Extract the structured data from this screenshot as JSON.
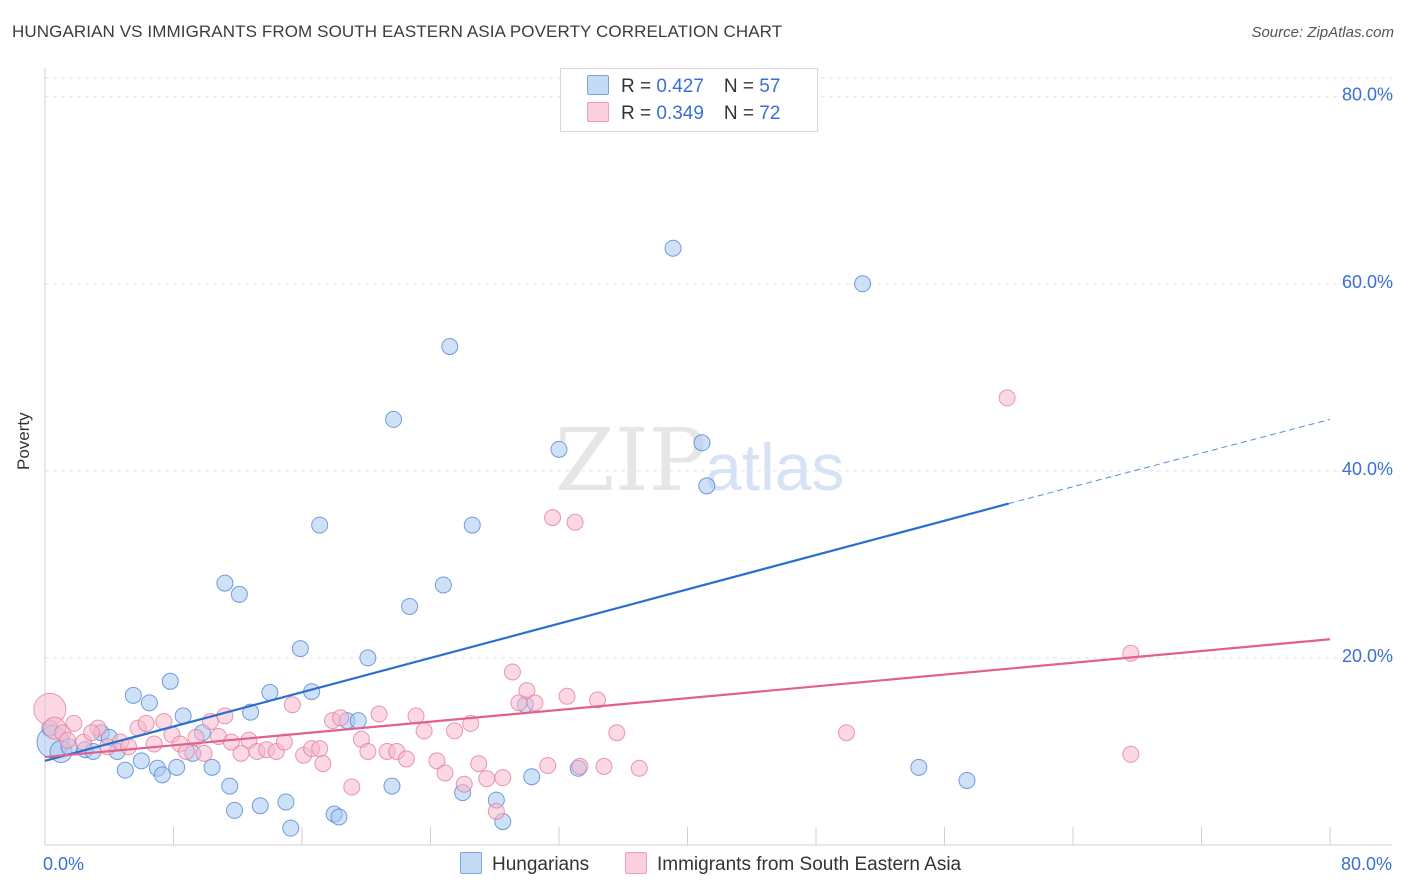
{
  "title": "HUNGARIAN VS IMMIGRANTS FROM SOUTH EASTERN ASIA POVERTY CORRELATION CHART",
  "source": "Source: ZipAtlas.com",
  "watermark": {
    "zip": "ZIP",
    "atlas": "atlas"
  },
  "legend": {
    "rows": [
      {
        "r_label": "R = ",
        "r_value": "0.427",
        "n_label": "N = ",
        "n_value": "57",
        "color": "#a8c8f0"
      },
      {
        "r_label": "R = ",
        "r_value": "0.349",
        "n_label": "N = ",
        "n_value": "72",
        "color": "#f7b8cc"
      }
    ]
  },
  "bottom_legend": [
    {
      "label": "Hungarians",
      "color": "#a8c8f0"
    },
    {
      "label": "Immigrants from South Eastern Asia",
      "color": "#f7b8cc"
    }
  ],
  "chart_data": {
    "type": "scatter",
    "title": "HUNGARIAN VS IMMIGRANTS FROM SOUTH EASTERN ASIA POVERTY CORRELATION CHART",
    "xlabel": "",
    "ylabel": "Poverty",
    "xlim": [
      0,
      80
    ],
    "ylim": [
      0,
      82
    ],
    "x_tick_labels": [
      {
        "value": 0,
        "label": "0.0%"
      },
      {
        "value": 80,
        "label": "80.0%"
      }
    ],
    "y_tick_labels": [
      {
        "value": 20,
        "label": "20.0%"
      },
      {
        "value": 40,
        "label": "40.0%"
      },
      {
        "value": 60,
        "label": "60.0%"
      },
      {
        "value": 80,
        "label": "80.0%"
      }
    ],
    "grid": true,
    "series": [
      {
        "name": "Hungarians",
        "color": "#4a7fd4",
        "fill": "#a8c8f0",
        "trend": {
          "x0": 0,
          "y0": 9,
          "x1": 60,
          "y1": 36.5,
          "x_dash_end": 80,
          "y_dash_end": 45.5,
          "color": "#2a6fd0"
        },
        "points": [
          [
            0.5,
            11,
            3
          ],
          [
            1,
            10,
            2
          ],
          [
            1.5,
            10.5,
            1
          ],
          [
            2.5,
            10.2,
            1
          ],
          [
            3,
            10,
            1
          ],
          [
            3.5,
            12,
            1
          ],
          [
            4,
            11.5,
            1
          ],
          [
            4.5,
            10,
            1
          ],
          [
            5,
            8,
            1
          ],
          [
            5.5,
            16,
            1
          ],
          [
            6,
            9,
            1
          ],
          [
            6.5,
            15.2,
            1
          ],
          [
            7,
            8.2,
            1
          ],
          [
            7.3,
            7.5,
            1
          ],
          [
            7.8,
            17.5,
            1
          ],
          [
            8.2,
            8.3,
            1
          ],
          [
            8.6,
            13.8,
            1
          ],
          [
            9.2,
            9.8,
            1
          ],
          [
            9.8,
            12,
            1
          ],
          [
            10.4,
            8.3,
            1
          ],
          [
            11.2,
            28,
            1
          ],
          [
            11.5,
            6.3,
            1
          ],
          [
            11.8,
            3.7,
            1
          ],
          [
            12.1,
            26.8,
            1
          ],
          [
            12.8,
            14.2,
            1
          ],
          [
            13.4,
            4.2,
            1
          ],
          [
            14,
            16.3,
            1
          ],
          [
            15,
            4.6,
            1
          ],
          [
            15.3,
            1.8,
            1
          ],
          [
            15.9,
            21,
            1
          ],
          [
            16.6,
            16.4,
            1
          ],
          [
            17.1,
            34.2,
            1
          ],
          [
            18,
            3.3,
            1
          ],
          [
            18.3,
            3,
            1
          ],
          [
            18.8,
            13.3,
            1
          ],
          [
            19.5,
            13.3,
            1
          ],
          [
            20.1,
            20,
            1
          ],
          [
            21.6,
            6.3,
            1
          ],
          [
            21.7,
            45.5,
            1
          ],
          [
            22.7,
            25.5,
            1
          ],
          [
            24.8,
            27.8,
            1
          ],
          [
            25.2,
            53.3,
            1
          ],
          [
            26,
            5.6,
            1
          ],
          [
            26.6,
            34.2,
            1
          ],
          [
            28.1,
            4.8,
            1
          ],
          [
            28.5,
            2.5,
            1
          ],
          [
            29.9,
            15,
            1
          ],
          [
            30.3,
            7.3,
            1
          ],
          [
            32,
            42.3,
            1
          ],
          [
            33.2,
            8.2,
            1
          ],
          [
            39.1,
            63.8,
            1
          ],
          [
            40.9,
            43,
            1
          ],
          [
            41.2,
            38.4,
            1
          ],
          [
            50.9,
            60,
            1
          ],
          [
            54.4,
            8.3,
            1
          ],
          [
            57.4,
            6.9,
            1
          ],
          [
            0.3,
            12.5,
            1
          ]
        ]
      },
      {
        "name": "Immigrants from South Eastern Asia",
        "color": "#e07a9a",
        "fill": "#f7b8cc",
        "trend": {
          "x0": 0,
          "y0": 9.4,
          "x1": 80,
          "y1": 22,
          "color": "#e3608c"
        },
        "points": [
          [
            0.3,
            14.5,
            3
          ],
          [
            0.6,
            12.5,
            2
          ],
          [
            1.1,
            12,
            1
          ],
          [
            1.8,
            13,
            1
          ],
          [
            2.4,
            11,
            1
          ],
          [
            3.3,
            12.5,
            1
          ],
          [
            3.9,
            10.5,
            1
          ],
          [
            4.7,
            11,
            1
          ],
          [
            5.2,
            10.5,
            1
          ],
          [
            5.8,
            12.5,
            1
          ],
          [
            6.3,
            13,
            1
          ],
          [
            6.8,
            10.8,
            1
          ],
          [
            7.4,
            13.2,
            1
          ],
          [
            7.9,
            11.8,
            1
          ],
          [
            8.4,
            10.8,
            1
          ],
          [
            8.8,
            10,
            1
          ],
          [
            9.4,
            11.5,
            1
          ],
          [
            9.9,
            9.8,
            1
          ],
          [
            10.3,
            13.2,
            1
          ],
          [
            10.8,
            11.6,
            1
          ],
          [
            11.2,
            13.8,
            1
          ],
          [
            11.6,
            11,
            1
          ],
          [
            12.2,
            9.8,
            1
          ],
          [
            12.7,
            11.2,
            1
          ],
          [
            13.2,
            10,
            1
          ],
          [
            13.8,
            10.2,
            1
          ],
          [
            14.4,
            10,
            1
          ],
          [
            14.9,
            11,
            1
          ],
          [
            15.4,
            15,
            1
          ],
          [
            16.1,
            9.6,
            1
          ],
          [
            16.6,
            10.3,
            1
          ],
          [
            17.1,
            10.3,
            1
          ],
          [
            17.3,
            8.7,
            1
          ],
          [
            17.9,
            13.3,
            1
          ],
          [
            18.4,
            13.6,
            1
          ],
          [
            19.1,
            6.2,
            1
          ],
          [
            19.7,
            11.3,
            1
          ],
          [
            20.1,
            10,
            1
          ],
          [
            20.8,
            14,
            1
          ],
          [
            21.3,
            10,
            1
          ],
          [
            21.9,
            10,
            1
          ],
          [
            22.5,
            9.2,
            1
          ],
          [
            23.1,
            13.8,
            1
          ],
          [
            23.6,
            12.2,
            1
          ],
          [
            24.4,
            9,
            1
          ],
          [
            24.9,
            7.7,
            1
          ],
          [
            25.5,
            12.2,
            1
          ],
          [
            26.1,
            6.5,
            1
          ],
          [
            26.5,
            13,
            1
          ],
          [
            27,
            8.7,
            1
          ],
          [
            27.5,
            7.1,
            1
          ],
          [
            28.1,
            3.6,
            1
          ],
          [
            28.5,
            7.2,
            1
          ],
          [
            29.1,
            18.5,
            1
          ],
          [
            29.5,
            15.2,
            1
          ],
          [
            30,
            16.5,
            1
          ],
          [
            30.5,
            15.2,
            1
          ],
          [
            31.3,
            8.5,
            1
          ],
          [
            31.6,
            35,
            1
          ],
          [
            32.5,
            15.9,
            1
          ],
          [
            33,
            34.5,
            1
          ],
          [
            33.3,
            8.4,
            1
          ],
          [
            34.4,
            15.5,
            1
          ],
          [
            34.8,
            8.4,
            1
          ],
          [
            35.6,
            12,
            1
          ],
          [
            37,
            8.2,
            1
          ],
          [
            49.9,
            12,
            1
          ],
          [
            59.9,
            47.8,
            1
          ],
          [
            67.6,
            9.7,
            1
          ],
          [
            67.6,
            20.5,
            1
          ],
          [
            1.4,
            11.2,
            1
          ],
          [
            2.9,
            12,
            1
          ]
        ]
      }
    ]
  }
}
